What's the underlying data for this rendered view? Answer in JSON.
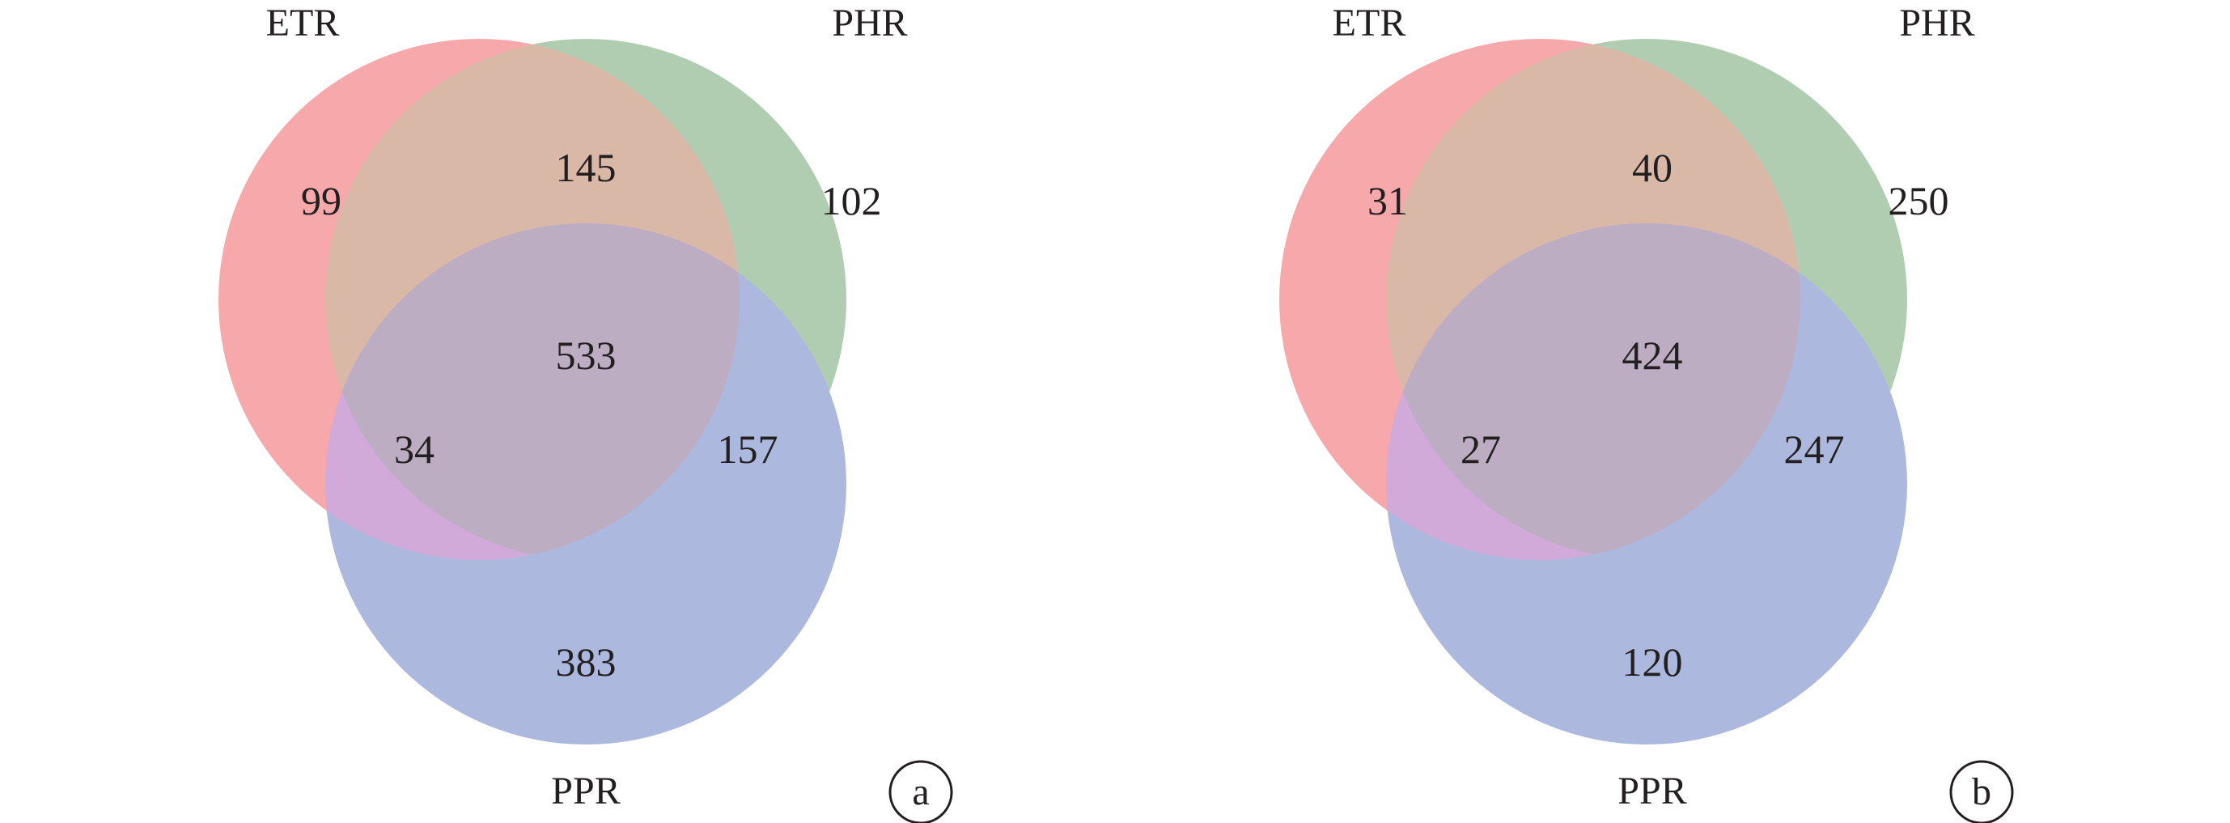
{
  "colors": {
    "etr": "#f7a8aa",
    "phr": "#b0cdb1",
    "ppr": "#acb8de",
    "etr_phr": "#dab8a8",
    "etr_ppr": "#d1aad9",
    "phr_ppr": "#acb8de",
    "all": "#bdadc3",
    "text": "#231f20"
  },
  "panels": [
    {
      "tag": "a",
      "sets": {
        "etr": "ETR",
        "phr": "PHR",
        "ppr": "PPR"
      },
      "counts": {
        "etr_only": "99",
        "phr_only": "102",
        "ppr_only": "383",
        "etr_phr": "145",
        "etr_ppr": "34",
        "phr_ppr": "157",
        "all": "533"
      }
    },
    {
      "tag": "b",
      "sets": {
        "etr": "ETR",
        "phr": "PHR",
        "ppr": "PPR"
      },
      "counts": {
        "etr_only": "31",
        "phr_only": "250",
        "ppr_only": "120",
        "etr_phr": "40",
        "etr_ppr": "27",
        "phr_ppr": "247",
        "all": "424"
      }
    }
  ]
}
